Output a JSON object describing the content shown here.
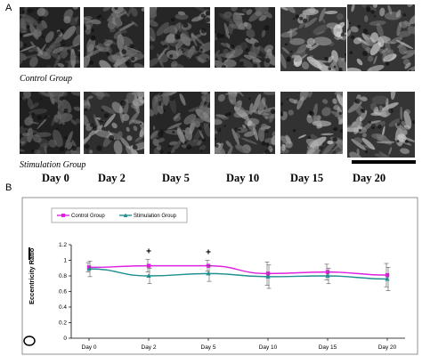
{
  "figure": {
    "panel_a_letter": "A",
    "panel_b_letter": "B",
    "control_group_label": "Control Group",
    "stimulation_group_label": "Stimulation Group",
    "day_labels": [
      "Day 0",
      "Day 2",
      "Day 5",
      "Day 10",
      "Day 15",
      "Day 20"
    ]
  },
  "chart_data": {
    "type": "line",
    "title": "",
    "xlabel": "",
    "ylabel": "Eccentricity Ratio",
    "ylim": [
      0,
      1.2
    ],
    "yticks": [
      0,
      0.2,
      0.4,
      0.6,
      0.8,
      1,
      1.2
    ],
    "categories": [
      "Day 0",
      "Day 2",
      "Day 5",
      "Day 10",
      "Day 15",
      "Day 20"
    ],
    "series": [
      {
        "name": "Control Group",
        "color": "#e020e0",
        "marker": "square",
        "values": [
          0.91,
          0.93,
          0.93,
          0.83,
          0.85,
          0.81
        ],
        "errors": [
          0.06,
          0.08,
          0.07,
          0.15,
          0.1,
          0.15
        ]
      },
      {
        "name": "Stimulation Group",
        "color": "#1f8f8f",
        "marker": "triangle",
        "values": [
          0.89,
          0.8,
          0.83,
          0.79,
          0.8,
          0.76
        ],
        "errors": [
          0.1,
          0.1,
          0.1,
          0.15,
          0.1,
          0.15
        ]
      }
    ],
    "significance_markers": [
      {
        "category": "Day 2",
        "symbol": "+"
      },
      {
        "category": "Day 5",
        "symbol": "+"
      }
    ],
    "legend_position": "top-left",
    "grid": false
  }
}
